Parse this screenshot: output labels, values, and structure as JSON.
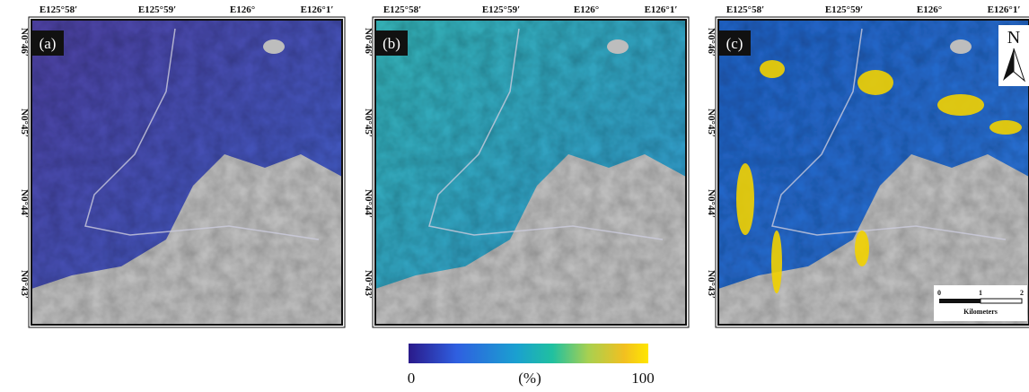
{
  "panels": [
    {
      "label": "(a)",
      "top_labels": [
        "E125°58′",
        "E125°59′",
        "E126°",
        "E126°1′"
      ],
      "left_labels": [
        "N0°46′",
        "N0°45′",
        "N0°44′",
        "N0°43′"
      ]
    },
    {
      "label": "(b)",
      "top_labels": [
        "E125°58′",
        "E125°59′",
        "E126°",
        "E126°1′"
      ],
      "left_labels": [
        "N0°46′",
        "N0°45′",
        "N0°44′",
        "N0°43′"
      ]
    },
    {
      "label": "(c)",
      "top_labels": [
        "E125°58′",
        "E125°59′",
        "E126°",
        "E126°1′"
      ],
      "left_labels": [
        "N0°46′",
        "N0°45′",
        "N0°44′",
        "N0°43′"
      ]
    }
  ],
  "north_arrow": "N",
  "scale_bar": {
    "ticks": [
      "0",
      "1",
      "2"
    ],
    "unit": "Kilometers"
  },
  "colorbar": {
    "min_label": "0",
    "unit_label": "(%)",
    "max_label": "100"
  }
}
